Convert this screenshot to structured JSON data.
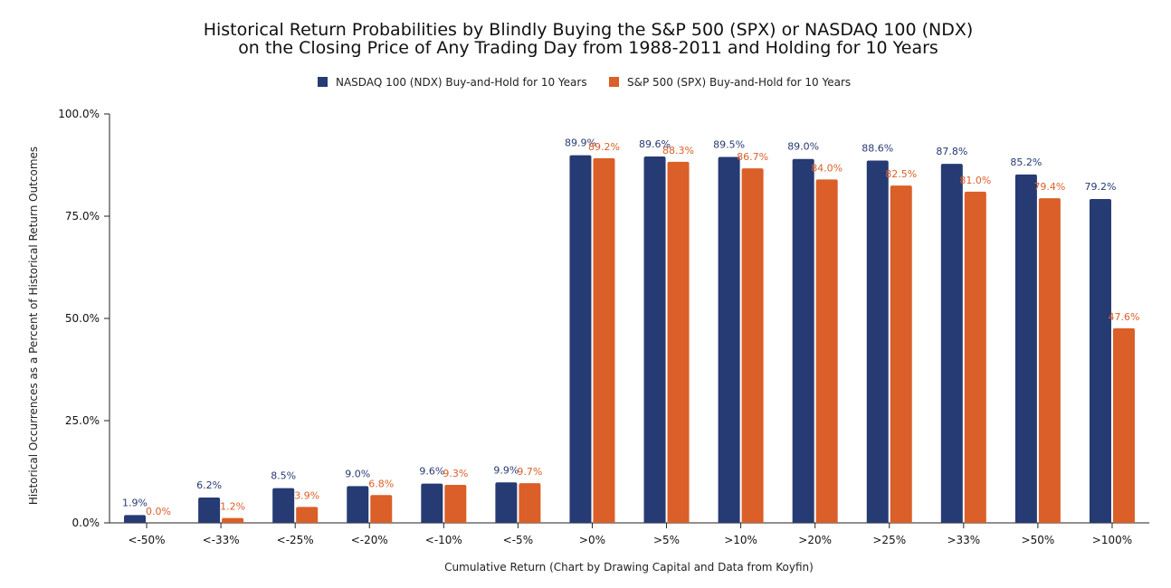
{
  "chart_data": {
    "type": "bar",
    "title_lines": [
      "Historical Return Probabilities by Blindly Buying the S&P 500 (SPX) or NASDAQ 100 (NDX)",
      "on the Closing Price of Any Trading Day from 1988-2011 and Holding for 10 Years"
    ],
    "xlabel": "Cumulative Return (Chart by Drawing Capital and Data from Koyfin)",
    "ylabel": "Historical Occurrences as a Percent of Historical Return Outcomes",
    "ylim": [
      0,
      100
    ],
    "yticks": [
      {
        "value": 0,
        "label": "0.0%"
      },
      {
        "value": 25,
        "label": "25.0%"
      },
      {
        "value": 50,
        "label": "50.0%"
      },
      {
        "value": 75,
        "label": "75.0%"
      },
      {
        "value": 100,
        "label": "100.0%"
      }
    ],
    "legend_position": "top-center",
    "grid": false,
    "categories": [
      "<-50%",
      "<-33%",
      "<-25%",
      "<-20%",
      "<-10%",
      "<-5%",
      ">0%",
      ">5%",
      ">10%",
      ">20%",
      ">25%",
      ">33%",
      ">50%",
      ">100%"
    ],
    "series": [
      {
        "name": "NASDAQ 100 (NDX) Buy-and-Hold for 10 Years",
        "color": "#263a73",
        "values": [
          1.9,
          6.2,
          8.5,
          9.0,
          9.6,
          9.9,
          89.9,
          89.6,
          89.5,
          89.0,
          88.6,
          87.8,
          85.2,
          79.2
        ],
        "labels": [
          "1.9%",
          "6.2%",
          "8.5%",
          "9.0%",
          "9.6%",
          "9.9%",
          "89.9%",
          "89.6%",
          "89.5%",
          "89.0%",
          "88.6%",
          "87.8%",
          "85.2%",
          "79.2%"
        ]
      },
      {
        "name": "S&P 500 (SPX) Buy-and-Hold for 10 Years",
        "color": "#db5f28",
        "values": [
          0.0,
          1.2,
          3.9,
          6.8,
          9.3,
          9.7,
          89.2,
          88.3,
          86.7,
          84.0,
          82.5,
          81.0,
          79.4,
          47.6
        ],
        "labels": [
          "0.0%",
          "1.2%",
          "3.9%",
          "6.8%",
          "9.3%",
          "9.7%",
          "89.2%",
          "88.3%",
          "86.7%",
          "84.0%",
          "82.5%",
          "81.0%",
          "79.4%",
          "47.6%"
        ]
      }
    ]
  }
}
